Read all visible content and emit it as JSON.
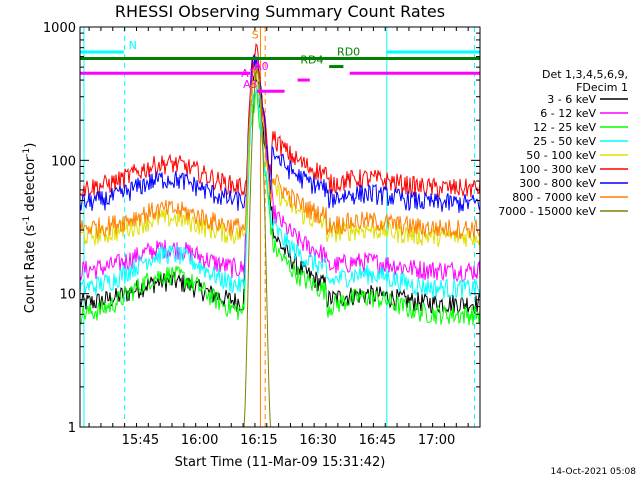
{
  "chart_data": {
    "type": "line",
    "title": "RHESSI Observing Summary Count Rates",
    "xlabel": "Start Time (11-Mar-09 15:31:42)",
    "ylabel_main": "Count Rate (s",
    "ylabel_sup1": "-1",
    "ylabel_mid": " detector",
    "ylabel_sup2": "-1",
    "ylabel_end": ")",
    "x_range_minutes": [
      15.7,
      117.0
    ],
    "y_log_range": [
      1,
      1000
    ],
    "x_ticks": [
      {
        "m": 31.0,
        "label": "15:45"
      },
      {
        "m": 46.0,
        "label": "16:00"
      },
      {
        "m": 61.0,
        "label": "16:15"
      },
      {
        "m": 76.0,
        "label": "16:30"
      },
      {
        "m": 91.0,
        "label": "16:45"
      },
      {
        "m": 106.0,
        "label": "17:00"
      }
    ],
    "y_ticks": [
      {
        "v": 1,
        "label": "1"
      },
      {
        "v": 10,
        "label": "10"
      },
      {
        "v": 100,
        "label": "100"
      },
      {
        "v": 1000,
        "label": "1000"
      }
    ],
    "legend_header": [
      "Det 1,3,4,5,6,9,",
      "FDecim 1"
    ],
    "series": [
      {
        "name": "3 - 6 keV",
        "color": "#000000",
        "base": 8.5,
        "hump": 4.0,
        "peak": 450,
        "post": 20
      },
      {
        "name": "6 - 12 keV",
        "color": "#ff00ff",
        "base": 15,
        "hump": 7.0,
        "peak": 560,
        "post": 26
      },
      {
        "name": "12 - 25 keV",
        "color": "#00ff00",
        "base": 7,
        "hump": 7.0,
        "peak": 300,
        "post": 15
      },
      {
        "name": "25 - 50 keV",
        "color": "#00ffff",
        "base": 11,
        "hump": 9.0,
        "peak": 330,
        "post": 20
      },
      {
        "name": "50 - 100 keV",
        "color": "#e0e000",
        "base": 27,
        "hump": 10.0,
        "peak": 470,
        "post": 36
      },
      {
        "name": "100 - 300 keV",
        "color": "#ff0000",
        "base": 62,
        "hump": 33.0,
        "peak": 660,
        "post": 85
      },
      {
        "name": "300 - 800 keV",
        "color": "#0000ff",
        "base": 48,
        "hump": 25.0,
        "peak": 600,
        "post": 65
      },
      {
        "name": "800 - 7000 keV",
        "color": "#ff8000",
        "base": 31,
        "hump": 12.0,
        "peak": 500,
        "post": 42
      },
      {
        "name": "7000 - 15000 keV",
        "color": "#808000",
        "base": 0.9,
        "hump": 0.0,
        "peak": 480,
        "post": 0.9
      }
    ],
    "state_bars": [
      {
        "name": "N",
        "label": "N",
        "color": "#00ffff",
        "y": 650,
        "segments": [
          [
            15.7,
            26.8
          ],
          [
            93.3,
            117.0
          ]
        ],
        "label_x": 28.0
      },
      {
        "name": "RD0",
        "label": "RD0",
        "color": "#008000",
        "y": 580,
        "segments": [
          [
            15.7,
            117.0
          ]
        ],
        "label_x": 80.8
      },
      {
        "name": "RD4",
        "label": "RD4",
        "color": "#008000",
        "y": 505,
        "segments": [
          [
            78.8,
            82.4
          ]
        ],
        "label_x": 71.5
      },
      {
        "name": "A0",
        "label": "A0",
        "color": "#ff00ff",
        "y": 450,
        "segments": [
          [
            15.7,
            58.8
          ],
          [
            84.0,
            117.0
          ]
        ],
        "label_x": 59.8
      },
      {
        "name": "A1",
        "label": "A1",
        "color": "#ff00ff",
        "y": 400,
        "segments": [
          [
            70.8,
            73.9
          ]
        ],
        "label_x": 56.5
      },
      {
        "name": "A3",
        "label": "A3",
        "color": "#ff00ff",
        "y": 330,
        "segments": [
          [
            60.5,
            67.5
          ]
        ],
        "label_x": 57.0
      },
      {
        "name": "S",
        "label": "S",
        "color": "#ff8000",
        "y": 780,
        "segments": [],
        "label_x": 59.2
      }
    ],
    "vlines": [
      {
        "m": 16.7,
        "color": "#00ffff",
        "dash": false
      },
      {
        "m": 27.0,
        "color": "#00ffff",
        "dash": true
      },
      {
        "m": 61.4,
        "color": "#ff8000",
        "dash": false
      },
      {
        "m": 62.6,
        "color": "#ff8000",
        "dash": true
      },
      {
        "m": 93.4,
        "color": "#00ffff",
        "dash": false
      },
      {
        "m": 115.6,
        "color": "#00ffff",
        "dash": true
      }
    ],
    "footer_date": "14-Oct-2021 05:08"
  }
}
